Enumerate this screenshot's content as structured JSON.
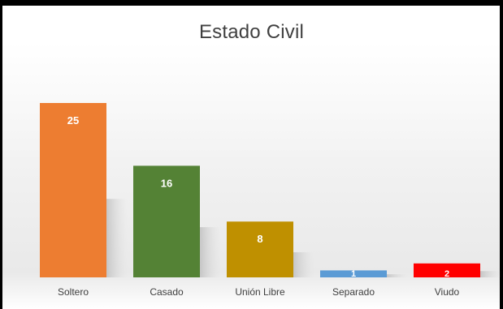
{
  "chart_data": {
    "type": "bar",
    "title": "Estado Civil",
    "xlabel": "",
    "ylabel": "",
    "categories": [
      "Soltero",
      "Casado",
      "Unión Libre",
      "Separado",
      "Viudo"
    ],
    "values": [
      25,
      16,
      8,
      1,
      2
    ],
    "data_labels": [
      "25",
      "16",
      "8",
      "1",
      "2"
    ],
    "colors": [
      "#ed7d31",
      "#548235",
      "#bf9000",
      "#5b9bd5",
      "#ff0000"
    ],
    "ylim": [
      0,
      25
    ],
    "grid": false,
    "legend": "none"
  }
}
